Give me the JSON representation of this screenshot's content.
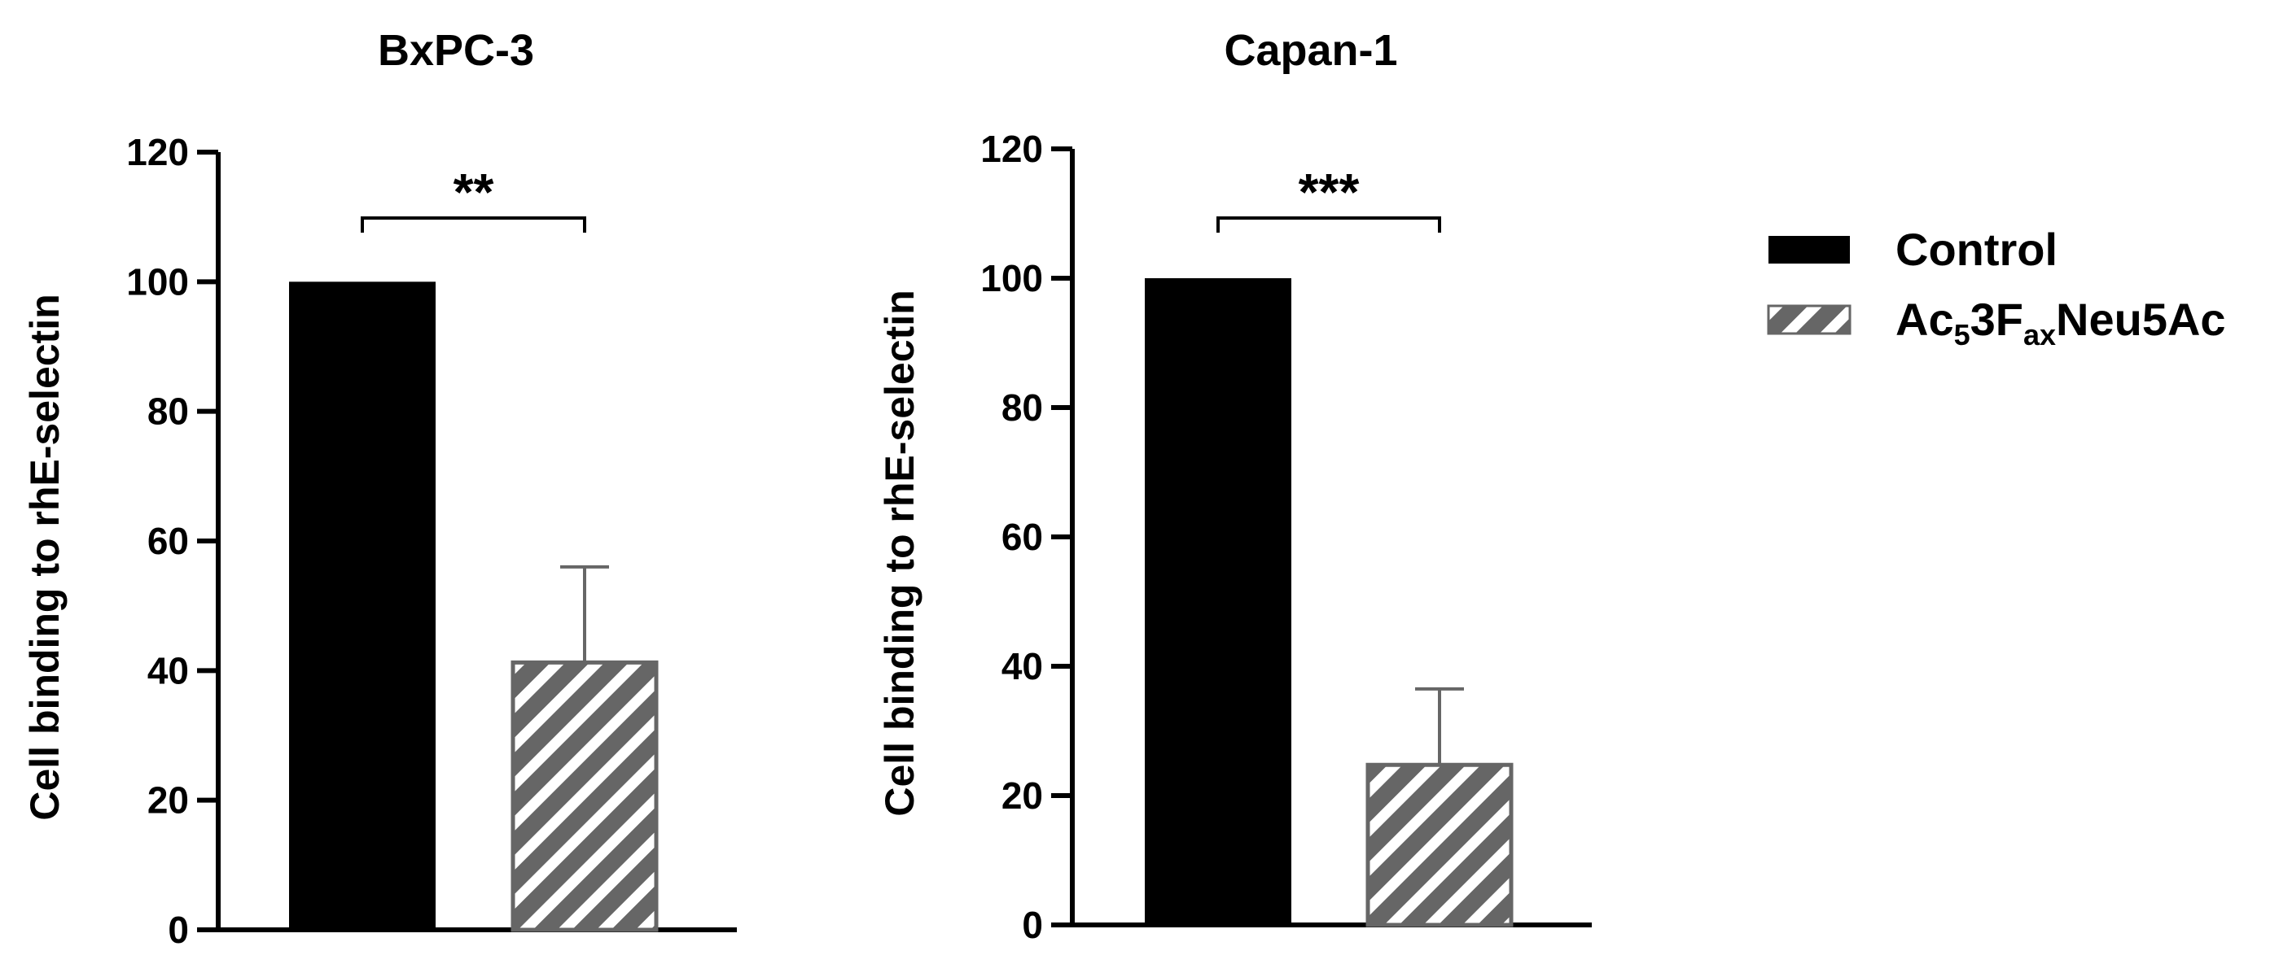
{
  "chart_data": [
    {
      "type": "bar",
      "title": "BxPC-3",
      "ylabel": "Cell binding to rhE-selectin",
      "ylim": [
        0,
        120
      ],
      "yticks": [
        0,
        20,
        40,
        60,
        80,
        100,
        120
      ],
      "categories": [
        "Control",
        "Ac53FaxNeu5Ac"
      ],
      "values": [
        100,
        41.5
      ],
      "errors": [
        0,
        14.5
      ],
      "significance": "**"
    },
    {
      "type": "bar",
      "title": "Capan-1",
      "ylabel": "Cell binding to rhE-selectin",
      "ylim": [
        0,
        120
      ],
      "yticks": [
        0,
        20,
        40,
        60,
        80,
        100,
        120
      ],
      "categories": [
        "Control",
        "Ac53FaxNeu5Ac"
      ],
      "values": [
        100,
        25
      ],
      "errors": [
        0,
        11.5
      ],
      "significance": "***"
    }
  ],
  "legend": {
    "position": "right",
    "items": [
      {
        "label": "Control",
        "style": "solid",
        "color": "#000000"
      },
      {
        "label_parts": [
          "Ac",
          "5",
          "3F",
          "ax",
          "Neu5Ac"
        ],
        "style": "hatched",
        "color": "#666666"
      }
    ]
  }
}
